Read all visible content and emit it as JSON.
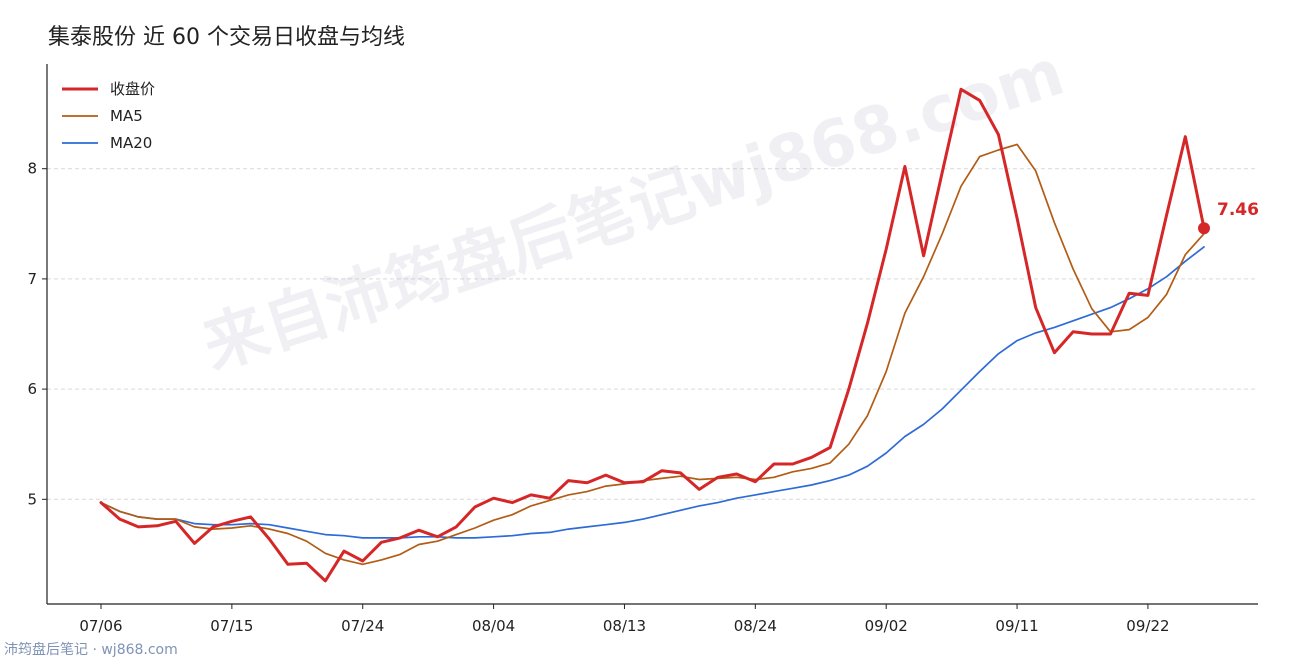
{
  "chart_data": {
    "type": "line",
    "title": "集泰股份 近 60 个交易日收盘与均线",
    "x": [
      "07/06",
      "07/07",
      "07/08",
      "07/09",
      "07/10",
      "07/13",
      "07/14",
      "07/15",
      "07/16",
      "07/17",
      "07/20",
      "07/21",
      "07/22",
      "07/23",
      "07/24",
      "07/27",
      "07/28",
      "07/29",
      "07/30",
      "07/31",
      "08/03",
      "08/04",
      "08/05",
      "08/06",
      "08/07",
      "08/10",
      "08/11",
      "08/12",
      "08/13",
      "08/14",
      "08/17",
      "08/18",
      "08/19",
      "08/20",
      "08/21",
      "08/24",
      "08/25",
      "08/26",
      "08/27",
      "08/28",
      "08/31",
      "09/01",
      "09/02",
      "09/03",
      "09/04",
      "09/07",
      "09/08",
      "09/09",
      "09/10",
      "09/11",
      "09/14",
      "09/15",
      "09/16",
      "09/17",
      "09/18",
      "09/21",
      "09/22",
      "09/23",
      "09/24",
      "09/25"
    ],
    "x_ticks": [
      "07/06",
      "07/15",
      "07/24",
      "08/04",
      "08/13",
      "08/24",
      "09/02",
      "09/11",
      "09/22"
    ],
    "y_ticks": [
      5,
      6,
      7,
      8
    ],
    "ylim": [
      4.05,
      8.95
    ],
    "grid": "horizontal dashed",
    "legend_position": "top-left",
    "series": [
      {
        "name": "收盘价",
        "color": "#d62728",
        "values": [
          4.97,
          4.82,
          4.75,
          4.76,
          4.8,
          4.6,
          4.75,
          4.8,
          4.84,
          4.64,
          4.41,
          4.42,
          4.26,
          4.53,
          4.44,
          4.61,
          4.65,
          4.72,
          4.66,
          4.75,
          4.93,
          5.01,
          4.97,
          5.04,
          5.01,
          5.17,
          5.15,
          5.22,
          5.15,
          5.16,
          5.26,
          5.24,
          5.09,
          5.2,
          5.23,
          5.16,
          5.32,
          5.32,
          5.38,
          5.47,
          6.0,
          6.6,
          7.27,
          8.02,
          7.21,
          7.97,
          8.72,
          8.62,
          8.31,
          7.55,
          6.74,
          6.33,
          6.52,
          6.5,
          6.5,
          6.87,
          6.85,
          7.58,
          8.29,
          7.46
        ]
      },
      {
        "name": "MA5",
        "color": "#b25c15",
        "values": [
          4.97,
          4.89,
          4.84,
          4.82,
          4.82,
          4.75,
          4.73,
          4.74,
          4.76,
          4.73,
          4.69,
          4.62,
          4.51,
          4.45,
          4.41,
          4.45,
          4.5,
          4.59,
          4.62,
          4.68,
          4.74,
          4.81,
          4.86,
          4.94,
          4.99,
          5.04,
          5.07,
          5.12,
          5.14,
          5.17,
          5.19,
          5.21,
          5.18,
          5.19,
          5.2,
          5.18,
          5.2,
          5.25,
          5.28,
          5.33,
          5.5,
          5.76,
          6.16,
          6.69,
          7.02,
          7.41,
          7.84,
          8.11,
          8.17,
          8.22,
          7.98,
          7.51,
          7.09,
          6.73,
          6.52,
          6.54,
          6.65,
          6.86,
          7.22,
          7.41
        ]
      },
      {
        "name": "MA20",
        "color": "#2e6bd6",
        "values": [
          4.97,
          4.89,
          4.84,
          4.82,
          4.82,
          4.78,
          4.77,
          4.77,
          4.78,
          4.77,
          4.74,
          4.71,
          4.68,
          4.67,
          4.65,
          4.65,
          4.65,
          4.66,
          4.66,
          4.65,
          4.65,
          4.66,
          4.67,
          4.69,
          4.7,
          4.73,
          4.75,
          4.77,
          4.79,
          4.82,
          4.86,
          4.9,
          4.94,
          4.97,
          5.01,
          5.04,
          5.07,
          5.1,
          5.13,
          5.17,
          5.22,
          5.3,
          5.42,
          5.57,
          5.68,
          5.82,
          5.99,
          6.16,
          6.32,
          6.44,
          6.51,
          6.56,
          6.62,
          6.68,
          6.74,
          6.82,
          6.91,
          7.02,
          7.16,
          7.29
        ]
      }
    ],
    "last_point_label": "7.46"
  },
  "watermark": "来自沛筠盘后笔记wj868.com",
  "footer": "沛筠盘后笔记 · wj868.com"
}
